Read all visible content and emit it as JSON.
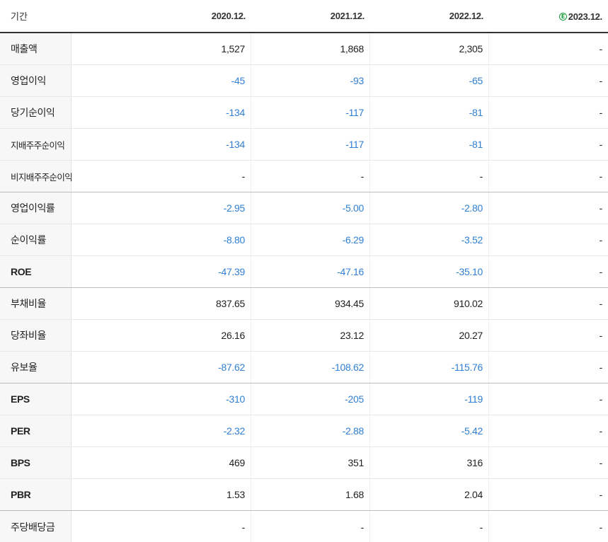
{
  "header": {
    "label": "기간",
    "columns": [
      "2020.12.",
      "2021.12.",
      "2022.12.",
      "2023.12."
    ],
    "estimate_icon": "E",
    "estimate_color": "#1a9b3a"
  },
  "colors": {
    "negative": "#2f7fd3",
    "text": "#222222"
  },
  "rows": [
    {
      "label": "매출액",
      "values": [
        "1,527",
        "1,868",
        "2,305",
        "-"
      ]
    },
    {
      "label": "영업이익",
      "values": [
        "-45",
        "-93",
        "-65",
        "-"
      ]
    },
    {
      "label": "당기순이익",
      "values": [
        "-134",
        "-117",
        "-81",
        "-"
      ]
    },
    {
      "label": "지배주주순이익",
      "values": [
        "-134",
        "-117",
        "-81",
        "-"
      ]
    },
    {
      "label": "비지배주주순이익",
      "values": [
        "-",
        "-",
        "-",
        "-"
      ]
    },
    {
      "label": "영업이익률",
      "values": [
        "-2.95",
        "-5.00",
        "-2.80",
        "-"
      ]
    },
    {
      "label": "순이익률",
      "values": [
        "-8.80",
        "-6.29",
        "-3.52",
        "-"
      ]
    },
    {
      "label": "ROE",
      "values": [
        "-47.39",
        "-47.16",
        "-35.10",
        "-"
      ]
    },
    {
      "label": "부채비율",
      "values": [
        "837.65",
        "934.45",
        "910.02",
        "-"
      ]
    },
    {
      "label": "당좌비율",
      "values": [
        "26.16",
        "23.12",
        "20.27",
        "-"
      ]
    },
    {
      "label": "유보율",
      "values": [
        "-87.62",
        "-108.62",
        "-115.76",
        "-"
      ]
    },
    {
      "label": "EPS",
      "values": [
        "-310",
        "-205",
        "-119",
        "-"
      ]
    },
    {
      "label": "PER",
      "values": [
        "-2.32",
        "-2.88",
        "-5.42",
        "-"
      ]
    },
    {
      "label": "BPS",
      "values": [
        "469",
        "351",
        "316",
        "-"
      ]
    },
    {
      "label": "PBR",
      "values": [
        "1.53",
        "1.68",
        "2.04",
        "-"
      ]
    },
    {
      "label": "주당배당금",
      "values": [
        "-",
        "-",
        "-",
        "-"
      ]
    }
  ]
}
